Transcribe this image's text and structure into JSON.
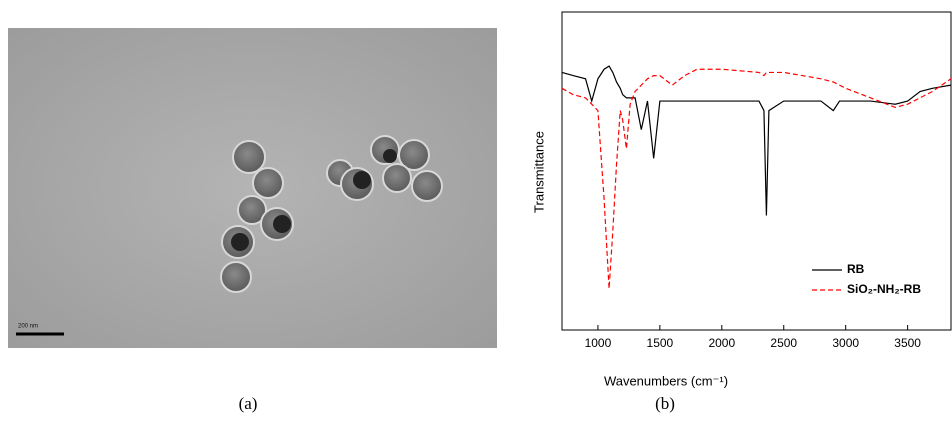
{
  "panel_a": {
    "scale_bar": "200 nm",
    "caption": "(a)"
  },
  "chart_data": {
    "type": "line",
    "caption": "(b)",
    "x_label": "Wavenumbers (cm⁻¹)",
    "y_label": "Transmittance",
    "x": [
      710,
      800,
      900,
      950,
      1000,
      1050,
      1090,
      1120,
      1150,
      1180,
      1200,
      1230,
      1260,
      1300,
      1350,
      1400,
      1450,
      1500,
      1600,
      1700,
      1800,
      2000,
      2300,
      2340,
      2360,
      2380,
      2500,
      2800,
      2900,
      2950,
      3000,
      3200,
      3400,
      3500,
      3600,
      3700,
      3850
    ],
    "series": [
      {
        "name": "RB",
        "color": "#000000",
        "dash": false,
        "values": [
          81,
          80,
          79,
          72,
          79,
          82,
          83,
          81,
          78,
          76,
          74,
          73,
          73,
          73,
          63,
          72,
          54,
          72,
          72,
          72,
          72,
          72,
          72,
          69,
          36,
          69,
          72,
          72,
          69,
          72,
          72,
          72,
          71,
          72,
          75,
          76,
          77
        ]
      },
      {
        "name": "SiO₂-NH₂-RB",
        "color": "#ff0000",
        "dash": true,
        "values": [
          76,
          74,
          73,
          71,
          69,
          41,
          13,
          31,
          52,
          69,
          66,
          57,
          71,
          75,
          77,
          79,
          80,
          80,
          77,
          80,
          82,
          82,
          81,
          80,
          81,
          81,
          81,
          79,
          78,
          77,
          76,
          73,
          70,
          71,
          73,
          75,
          79
        ]
      }
    ],
    "xlim": [
      710,
      3850
    ],
    "ylim": [
      0,
      100
    ],
    "xticks": [
      1000,
      1500,
      2000,
      2500,
      3000,
      3500
    ]
  }
}
